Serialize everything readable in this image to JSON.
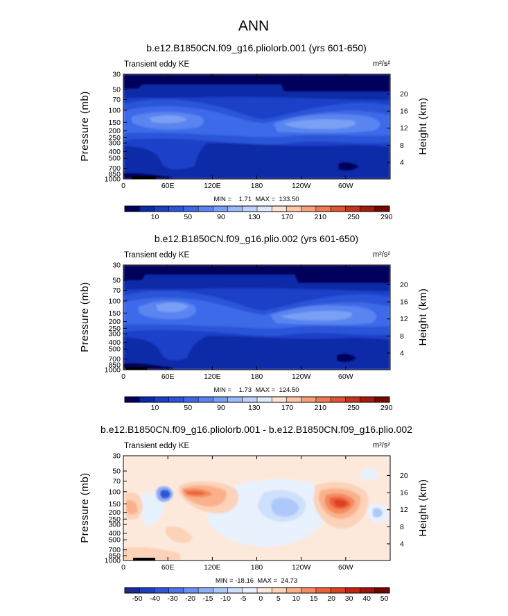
{
  "figure_title": "ANN",
  "colors": {
    "abs_scale": [
      "#00005c",
      "#0a2aa8",
      "#1a40c8",
      "#2a55d8",
      "#3d6ae8",
      "#5a84f0",
      "#7aa0f5",
      "#9dbaf8",
      "#bed2fb",
      "#dde9fd",
      "#fee3d0",
      "#fbc7a8",
      "#f6a07a",
      "#ef7a50",
      "#e2532e",
      "#c8341a",
      "#a21c0c",
      "#760800"
    ],
    "diff_scale": [
      "#1a2a90",
      "#1b3fbf",
      "#2d57d8",
      "#4a74ea",
      "#6a92f2",
      "#8cafF6",
      "#aec8f9",
      "#cfe0fc",
      "#e8f1fe",
      "#fde9dc",
      "#fcd2b8",
      "#f9b18c",
      "#f48a60",
      "#ec6238",
      "#dc4020",
      "#bf2412",
      "#9c1108",
      "#700500"
    ],
    "black": "#000000"
  },
  "chart_data": [
    {
      "type": "heatmap",
      "title": "b.e12.B1850CN.f09_g16.pliolorb.001 (yrs 601-650)",
      "subtitle_left": "Transient eddy KE",
      "units": "m²/s²",
      "xlabel": "",
      "ylabel": "Pressure (mb)",
      "ylabel_right": "Height (km)",
      "x_ticks": [
        "0",
        "60E",
        "120E",
        "180",
        "120W",
        "60W"
      ],
      "y_ticks": [
        "30",
        "50",
        "70",
        "100",
        "150",
        "200",
        "250",
        "300",
        "400",
        "500",
        "700",
        "850",
        "1000"
      ],
      "y_ticks_right": [
        "20",
        "16",
        "12",
        "8",
        "4"
      ],
      "stats": "MIN =    1.71  MAX =  133.50",
      "colorbar_labels": [
        "10",
        "50",
        "90",
        "130",
        "170",
        "210",
        "250",
        "290"
      ]
    },
    {
      "type": "heatmap",
      "title": "b.e12.B1850CN.f09_g16.plio.002 (yrs 601-650)",
      "subtitle_left": "Transient eddy KE",
      "units": "m²/s²",
      "xlabel": "",
      "ylabel": "Pressure (mb)",
      "ylabel_right": "Height (km)",
      "x_ticks": [
        "0",
        "60E",
        "120E",
        "180",
        "120W",
        "60W"
      ],
      "y_ticks": [
        "30",
        "50",
        "70",
        "100",
        "150",
        "200",
        "250",
        "300",
        "400",
        "500",
        "700",
        "850",
        "1000"
      ],
      "y_ticks_right": [
        "20",
        "16",
        "12",
        "8",
        "4"
      ],
      "stats": "MIN =    1.73  MAX =  124.50",
      "colorbar_labels": [
        "10",
        "50",
        "90",
        "130",
        "170",
        "210",
        "250",
        "290"
      ]
    },
    {
      "type": "heatmap",
      "title": "b.e12.B1850CN.f09_g16.pliolorb.001 - b.e12.B1850CN.f09_g16.plio.002",
      "subtitle_left": "Transient eddy KE",
      "units": "m²/s²",
      "xlabel": "",
      "ylabel": "Pressure (mb)",
      "ylabel_right": "Height (km)",
      "x_ticks": [
        "0",
        "60E",
        "120E",
        "180",
        "120W",
        "60W"
      ],
      "y_ticks": [
        "30",
        "50",
        "70",
        "100",
        "150",
        "200",
        "250",
        "300",
        "400",
        "500",
        "700",
        "850",
        "1000"
      ],
      "y_ticks_right": [
        "20",
        "16",
        "12",
        "8",
        "4"
      ],
      "stats": "MIN = -18.16  MAX =  24.73",
      "colorbar_labels": [
        "-50",
        "-40",
        "-30",
        "-20",
        "-15",
        "-10",
        "-5",
        "0",
        "5",
        "10",
        "15",
        "20",
        "30",
        "40",
        "50"
      ]
    }
  ]
}
